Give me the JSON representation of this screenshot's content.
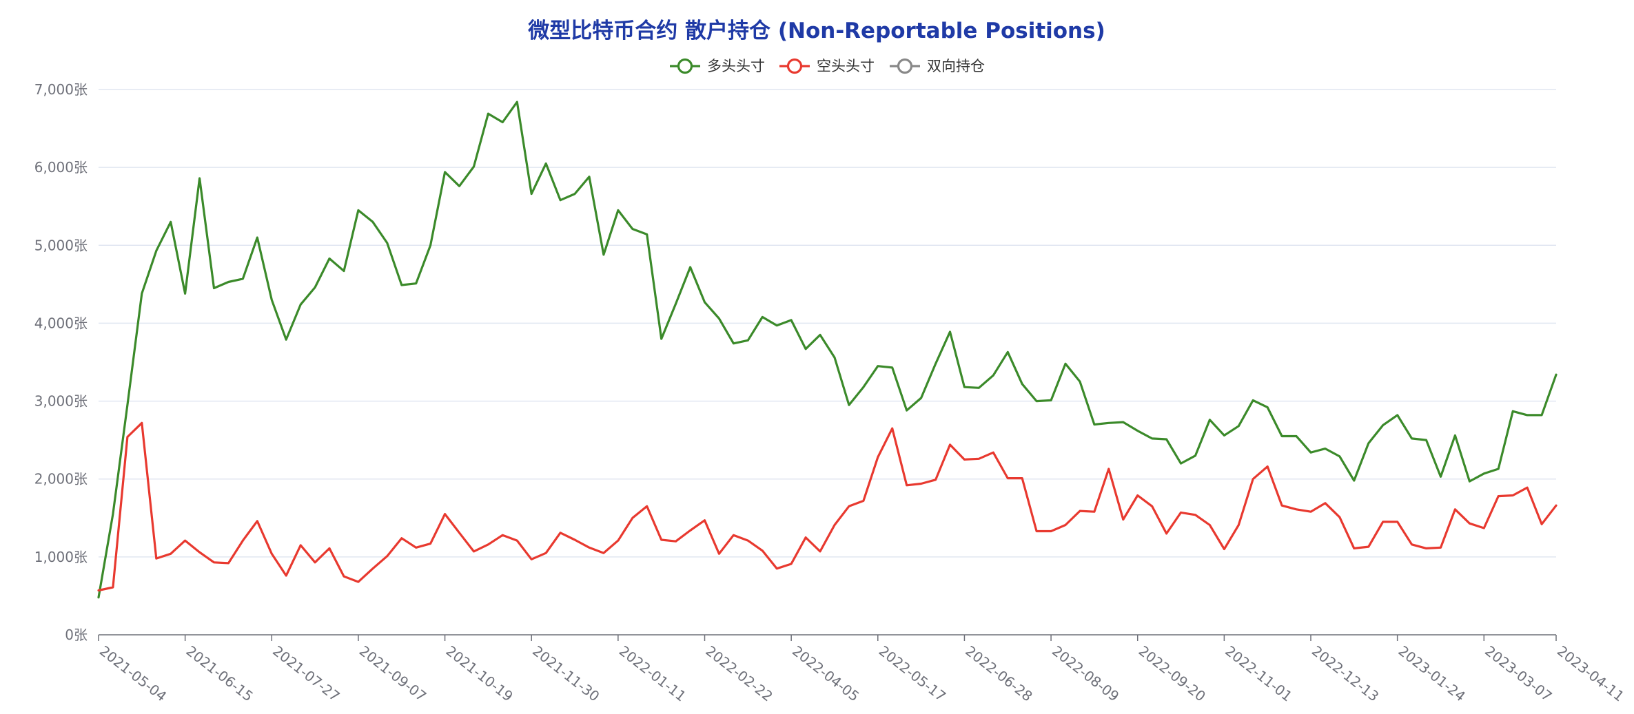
{
  "chart_data": {
    "type": "line",
    "title": "微型比特币合约 散户持仓 (Non-Reportable Positions)",
    "xlabel": "",
    "ylabel": "",
    "y_unit_suffix": "张",
    "ylim": [
      0,
      7000
    ],
    "y_ticks": [
      "0张",
      "1,000张",
      "2,000张",
      "3,000张",
      "4,000张",
      "5,000张",
      "6,000张",
      "7,000张"
    ],
    "x_ticks": [
      "2021-05-04",
      "2021-06-15",
      "2021-07-27",
      "2021-09-07",
      "2021-10-19",
      "2021-11-30",
      "2022-01-11",
      "2022-02-22",
      "2022-04-05",
      "2022-05-17",
      "2022-06-28",
      "2022-08-09",
      "2022-09-20",
      "2022-11-01",
      "2022-12-13",
      "2023-01-24",
      "2023-03-07",
      "2023-04-11"
    ],
    "grid": true,
    "legend_position": "top-center",
    "title_color": "#1f3aa6",
    "series": [
      {
        "name": "多头头寸",
        "color": "#3b8a2a",
        "values": [
          480,
          1550,
          2950,
          4380,
          4930,
          5300,
          4380,
          5860,
          4450,
          4530,
          4570,
          5100,
          4300,
          3790,
          4240,
          4460,
          4830,
          4670,
          5450,
          5300,
          5030,
          4490,
          4510,
          5000,
          5940,
          5760,
          6010,
          6690,
          6580,
          6840,
          5660,
          6050,
          5580,
          5660,
          5880,
          4880,
          5450,
          5210,
          5140,
          3800,
          4250,
          4720,
          4270,
          4060,
          3740,
          3780,
          4080,
          3970,
          4040,
          3670,
          3850,
          3560,
          2950,
          3180,
          3450,
          3430,
          2880,
          3040,
          3480,
          3890,
          3180,
          3170,
          3330,
          3630,
          3220,
          3000,
          3010,
          3480,
          3250,
          2700,
          2720,
          2730,
          2620,
          2520,
          2510,
          2200,
          2300,
          2760,
          2560,
          2680,
          3010,
          2920,
          2550,
          2550,
          2340,
          2390,
          2290,
          1980,
          2460,
          2690,
          2820,
          2520,
          2500,
          2030,
          2560,
          1970,
          2070,
          2130,
          2870,
          2820,
          2820,
          3340
        ]
      },
      {
        "name": "空头头寸",
        "color": "#e8392f",
        "values": [
          570,
          610,
          2540,
          2720,
          980,
          1040,
          1210,
          1060,
          930,
          920,
          1210,
          1460,
          1040,
          760,
          1150,
          930,
          1110,
          750,
          680,
          850,
          1010,
          1240,
          1120,
          1170,
          1550,
          1310,
          1070,
          1160,
          1280,
          1210,
          970,
          1050,
          1310,
          1220,
          1120,
          1050,
          1210,
          1500,
          1650,
          1220,
          1200,
          1340,
          1470,
          1040,
          1280,
          1210,
          1080,
          850,
          910,
          1250,
          1070,
          1410,
          1650,
          1720,
          2280,
          2650,
          1920,
          1940,
          1990,
          2440,
          2250,
          2260,
          2340,
          2010,
          2010,
          1330,
          1330,
          1410,
          1590,
          1580,
          2130,
          1480,
          1790,
          1650,
          1300,
          1570,
          1540,
          1410,
          1100,
          1410,
          2000,
          2160,
          1660,
          1610,
          1580,
          1690,
          1510,
          1110,
          1130,
          1450,
          1450,
          1160,
          1110,
          1120,
          1610,
          1430,
          1370,
          1780,
          1790,
          1890,
          1420,
          1660
        ]
      },
      {
        "name": "双向持仓",
        "color": "#888888",
        "values": []
      }
    ]
  }
}
